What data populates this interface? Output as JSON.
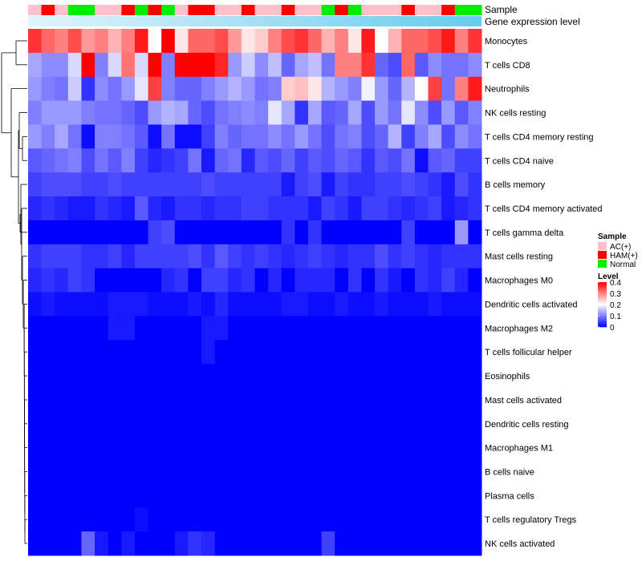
{
  "chart_data": {
    "type": "heatmap",
    "annotation_titles": {
      "sample": "Sample",
      "expression": "Gene expression level"
    },
    "sample_groups": [
      "AC(+)",
      "HAM(+)",
      "AC(+)",
      "Normal",
      "Normal",
      "AC(+)",
      "AC(+)",
      "HAM(+)",
      "Normal",
      "HAM(+)",
      "Normal",
      "AC(+)",
      "HAM(+)",
      "HAM(+)",
      "AC(+)",
      "AC(+)",
      "HAM(+)",
      "AC(+)",
      "AC(+)",
      "HAM(+)",
      "AC(+)",
      "AC(+)",
      "Normal",
      "HAM(+)",
      "Normal",
      "AC(+)",
      "AC(+)",
      "AC(+)",
      "HAM(+)",
      "AC(+)",
      "AC(+)",
      "HAM(+)",
      "Normal",
      "Normal"
    ],
    "group_colors": {
      "AC(+)": "#ffc0cb",
      "HAM(+)": "#ff0000",
      "Normal": "#00ee00"
    },
    "expression_bar_colors": [
      "#e0f4fb",
      "#66ccee"
    ],
    "rows": [
      {
        "name": "Monocytes",
        "values": [
          0.36,
          0.32,
          0.3,
          0.34,
          0.28,
          0.3,
          0.26,
          0.3,
          0.38,
          0.2,
          0.4,
          0.22,
          0.32,
          0.32,
          0.34,
          0.28,
          0.22,
          0.24,
          0.3,
          0.34,
          0.36,
          0.32,
          0.26,
          0.3,
          0.22,
          0.38,
          0.2,
          0.26,
          0.32,
          0.32,
          0.34,
          0.38,
          0.3,
          0.36
        ]
      },
      {
        "name": "T cells CD8",
        "values": [
          0.13,
          0.11,
          0.11,
          0.17,
          0.4,
          0.1,
          0.17,
          0.31,
          0.17,
          0.4,
          0.1,
          0.4,
          0.4,
          0.4,
          0.37,
          0.12,
          0.16,
          0.11,
          0.15,
          0.08,
          0.13,
          0.15,
          0.09,
          0.3,
          0.3,
          0.36,
          0.08,
          0.06,
          0.32,
          0.07,
          0.11,
          0.09,
          0.09,
          0.11
        ]
      },
      {
        "name": "Neutrophils",
        "values": [
          0.12,
          0.1,
          0.09,
          0.16,
          0.04,
          0.11,
          0.09,
          0.12,
          0.18,
          0.35,
          0.1,
          0.08,
          0.08,
          0.1,
          0.12,
          0.14,
          0.12,
          0.09,
          0.1,
          0.24,
          0.25,
          0.22,
          0.14,
          0.12,
          0.1,
          0.19,
          0.12,
          0.08,
          0.14,
          0.2,
          0.35,
          0.09,
          0.3,
          0.38
        ]
      },
      {
        "name": "NK cells resting",
        "values": [
          0.1,
          0.12,
          0.12,
          0.12,
          0.1,
          0.09,
          0.09,
          0.08,
          0.06,
          0.12,
          0.14,
          0.13,
          0.08,
          0.06,
          0.09,
          0.1,
          0.11,
          0.1,
          0.18,
          0.13,
          0.04,
          0.13,
          0.07,
          0.08,
          0.13,
          0.06,
          0.12,
          0.09,
          0.18,
          0.11,
          0.06,
          0.12,
          0.07,
          0.1
        ]
      },
      {
        "name": "T cells CD4 memory resting",
        "values": [
          0.12,
          0.1,
          0.13,
          0.09,
          0.01,
          0.1,
          0.1,
          0.09,
          0.07,
          0.01,
          0.09,
          0.01,
          0.01,
          0.05,
          0.1,
          0.08,
          0.09,
          0.09,
          0.11,
          0.09,
          0.12,
          0.09,
          0.06,
          0.09,
          0.1,
          0.06,
          0.08,
          0.14,
          0.05,
          0.1,
          0.13,
          0.06,
          0.11,
          0.09
        ]
      },
      {
        "name": "T cells CD4 naive",
        "values": [
          0.07,
          0.08,
          0.09,
          0.1,
          0.06,
          0.09,
          0.07,
          0.1,
          0.05,
          0.03,
          0.04,
          0.05,
          0.09,
          0.02,
          0.08,
          0.09,
          0.03,
          0.07,
          0.06,
          0.08,
          0.05,
          0.07,
          0.06,
          0.08,
          0.07,
          0.04,
          0.07,
          0.06,
          0.09,
          0.01,
          0.07,
          0.08,
          0.05,
          0.05
        ]
      },
      {
        "name": "B cells memory",
        "values": [
          0.05,
          0.06,
          0.06,
          0.06,
          0.05,
          0.05,
          0.06,
          0.05,
          0.05,
          0.05,
          0.05,
          0.05,
          0.05,
          0.06,
          0.05,
          0.05,
          0.05,
          0.05,
          0.05,
          0.02,
          0.05,
          0.06,
          0.02,
          0.05,
          0.04,
          0.04,
          0.05,
          0.05,
          0.06,
          0.05,
          0.04,
          0.02,
          0.06,
          0.04
        ]
      },
      {
        "name": "T cells CD4 memory activated",
        "values": [
          0.03,
          0.04,
          0.03,
          0.02,
          0.02,
          0.04,
          0.03,
          0.02,
          0.07,
          0.03,
          0.02,
          0.04,
          0.04,
          0.03,
          0.04,
          0.04,
          0.05,
          0.05,
          0.04,
          0.04,
          0.04,
          0.02,
          0.05,
          0.04,
          0.02,
          0.05,
          0.05,
          0.04,
          0.03,
          0.04,
          0.05,
          0.02,
          0.03,
          0.04
        ]
      },
      {
        "name": "T cells gamma delta",
        "values": [
          0.0,
          0.0,
          0.0,
          0.0,
          0.0,
          0.0,
          0.0,
          0.0,
          0.0,
          0.05,
          0.06,
          0.0,
          0.0,
          0.0,
          0.0,
          0.0,
          0.0,
          0.0,
          0.0,
          0.04,
          0.0,
          0.04,
          0.0,
          0.0,
          0.0,
          0.0,
          0.0,
          0.0,
          0.05,
          0.0,
          0.0,
          0.0,
          0.12,
          0.0
        ]
      },
      {
        "name": "Mast cells resting",
        "values": [
          0.04,
          0.05,
          0.05,
          0.05,
          0.04,
          0.04,
          0.05,
          0.03,
          0.05,
          0.05,
          0.05,
          0.05,
          0.06,
          0.04,
          0.07,
          0.05,
          0.04,
          0.05,
          0.04,
          0.03,
          0.04,
          0.05,
          0.04,
          0.03,
          0.04,
          0.04,
          0.06,
          0.04,
          0.05,
          0.04,
          0.03,
          0.04,
          0.04,
          0.04
        ]
      },
      {
        "name": "Macrophages M0",
        "values": [
          0.03,
          0.04,
          0.03,
          0.05,
          0.04,
          0.0,
          0.0,
          0.0,
          0.0,
          0.0,
          0.03,
          0.04,
          0.0,
          0.05,
          0.05,
          0.03,
          0.04,
          0.0,
          0.03,
          0.0,
          0.03,
          0.03,
          0.03,
          0.0,
          0.04,
          0.0,
          0.04,
          0.02,
          0.0,
          0.04,
          0.03,
          0.05,
          0.03,
          0.0
        ]
      },
      {
        "name": "Dendritic cells activated",
        "values": [
          0.01,
          0.02,
          0.01,
          0.01,
          0.01,
          0.01,
          0.02,
          0.02,
          0.02,
          0.01,
          0.01,
          0.01,
          0.02,
          0.01,
          0.03,
          0.01,
          0.01,
          0.01,
          0.01,
          0.02,
          0.02,
          0.01,
          0.01,
          0.02,
          0.01,
          0.01,
          0.02,
          0.01,
          0.01,
          0.01,
          0.02,
          0.01,
          0.01,
          0.01
        ]
      },
      {
        "name": "Macrophages M2",
        "values": [
          0.0,
          0.0,
          0.0,
          0.0,
          0.0,
          0.0,
          0.02,
          0.02,
          0.0,
          0.0,
          0.0,
          0.0,
          0.0,
          0.02,
          0.02,
          0.0,
          0.0,
          0.0,
          0.0,
          0.0,
          0.0,
          0.0,
          0.0,
          0.0,
          0.0,
          0.0,
          0.0,
          0.0,
          0.0,
          0.0,
          0.0,
          0.0,
          0.0,
          0.0
        ]
      },
      {
        "name": "T cells follicular helper",
        "values": [
          0.0,
          0.0,
          0.0,
          0.0,
          0.0,
          0.0,
          0.0,
          0.0,
          0.0,
          0.0,
          0.0,
          0.0,
          0.0,
          0.02,
          0.0,
          0.0,
          0.0,
          0.0,
          0.0,
          0.0,
          0.0,
          0.0,
          0.0,
          0.0,
          0.0,
          0.0,
          0.0,
          0.0,
          0.0,
          0.0,
          0.0,
          0.0,
          0.0,
          0.0
        ]
      },
      {
        "name": "Eosinophils",
        "values": [
          0.0,
          0.0,
          0.0,
          0.0,
          0.0,
          0.0,
          0.0,
          0.0,
          0.0,
          0.0,
          0.0,
          0.0,
          0.0,
          0.0,
          0.0,
          0.0,
          0.0,
          0.0,
          0.0,
          0.0,
          0.0,
          0.0,
          0.0,
          0.0,
          0.0,
          0.0,
          0.0,
          0.0,
          0.0,
          0.0,
          0.0,
          0.0,
          0.0,
          0.0
        ]
      },
      {
        "name": "Mast cells activated",
        "values": [
          0.0,
          0.0,
          0.0,
          0.0,
          0.0,
          0.0,
          0.0,
          0.0,
          0.0,
          0.0,
          0.0,
          0.0,
          0.0,
          0.0,
          0.0,
          0.0,
          0.0,
          0.0,
          0.0,
          0.0,
          0.0,
          0.0,
          0.0,
          0.0,
          0.0,
          0.0,
          0.0,
          0.0,
          0.0,
          0.0,
          0.0,
          0.0,
          0.0,
          0.0
        ]
      },
      {
        "name": "Dendritic cells resting",
        "values": [
          0.0,
          0.0,
          0.0,
          0.0,
          0.0,
          0.0,
          0.0,
          0.0,
          0.0,
          0.0,
          0.0,
          0.0,
          0.0,
          0.0,
          0.0,
          0.0,
          0.0,
          0.0,
          0.0,
          0.0,
          0.0,
          0.0,
          0.0,
          0.0,
          0.0,
          0.0,
          0.0,
          0.0,
          0.0,
          0.0,
          0.0,
          0.0,
          0.0,
          0.0
        ]
      },
      {
        "name": "Macrophages M1",
        "values": [
          0.0,
          0.0,
          0.0,
          0.0,
          0.0,
          0.0,
          0.0,
          0.0,
          0.0,
          0.0,
          0.0,
          0.0,
          0.0,
          0.0,
          0.0,
          0.0,
          0.0,
          0.0,
          0.0,
          0.0,
          0.0,
          0.0,
          0.0,
          0.0,
          0.0,
          0.0,
          0.0,
          0.0,
          0.0,
          0.0,
          0.0,
          0.0,
          0.0,
          0.0
        ]
      },
      {
        "name": "B cells naive",
        "values": [
          0.0,
          0.0,
          0.0,
          0.0,
          0.0,
          0.0,
          0.0,
          0.0,
          0.0,
          0.0,
          0.0,
          0.0,
          0.0,
          0.0,
          0.0,
          0.0,
          0.0,
          0.0,
          0.0,
          0.0,
          0.0,
          0.0,
          0.0,
          0.0,
          0.0,
          0.0,
          0.0,
          0.0,
          0.0,
          0.0,
          0.0,
          0.0,
          0.0,
          0.0
        ]
      },
      {
        "name": "Plasma cells",
        "values": [
          0.0,
          0.0,
          0.0,
          0.0,
          0.0,
          0.0,
          0.0,
          0.0,
          0.0,
          0.0,
          0.0,
          0.0,
          0.0,
          0.0,
          0.0,
          0.0,
          0.0,
          0.0,
          0.0,
          0.0,
          0.0,
          0.0,
          0.0,
          0.0,
          0.0,
          0.0,
          0.0,
          0.0,
          0.0,
          0.0,
          0.0,
          0.0,
          0.0,
          0.0
        ]
      },
      {
        "name": "T cells regulatory  Tregs",
        "values": [
          0.0,
          0.0,
          0.0,
          0.0,
          0.0,
          0.0,
          0.0,
          0.0,
          0.01,
          0.0,
          0.0,
          0.0,
          0.0,
          0.0,
          0.0,
          0.0,
          0.0,
          0.0,
          0.0,
          0.0,
          0.0,
          0.0,
          0.0,
          0.0,
          0.0,
          0.0,
          0.0,
          0.0,
          0.0,
          0.0,
          0.0,
          0.0,
          0.0,
          0.0
        ]
      },
      {
        "name": "NK cells activated",
        "values": [
          0.0,
          0.0,
          0.0,
          0.0,
          0.08,
          0.02,
          0.0,
          0.02,
          0.0,
          0.0,
          0.0,
          0.02,
          0.04,
          0.03,
          0.0,
          0.0,
          0.0,
          0.0,
          0.0,
          0.0,
          0.0,
          0.0,
          0.05,
          0.0,
          0.0,
          0.0,
          0.0,
          0.0,
          0.0,
          0.0,
          0.0,
          0.0,
          0.0,
          0.0
        ]
      }
    ],
    "legend": {
      "sample_title": "Sample",
      "sample_entries": [
        "AC(+)",
        "HAM(+)",
        "Normal"
      ],
      "level_title": "Level",
      "level_ticks": [
        "0.4",
        "0.3",
        "0.2",
        "0.1",
        "0"
      ],
      "level_range": [
        0,
        0.4
      ]
    },
    "color_scale": {
      "low": "#0000ff",
      "mid": "#ffffff",
      "high": "#ff0000",
      "midpoint": 0.2
    }
  }
}
